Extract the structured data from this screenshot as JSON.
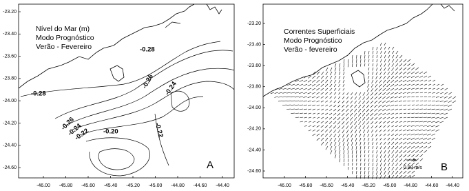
{
  "panels": [
    {
      "title_lines": [
        "Nível do Mar (m)",
        "Modo Prognóstico",
        "Verão - Fevereiro"
      ],
      "letter": "A",
      "xticks": [
        {
          "value": -46.0,
          "label": "-46.00"
        },
        {
          "value": -45.8,
          "label": "-45.80"
        },
        {
          "value": -45.6,
          "label": "-45.60"
        },
        {
          "value": -45.4,
          "label": "-45.40"
        },
        {
          "value": -45.2,
          "label": "-45.20"
        },
        {
          "value": -45.0,
          "label": "-45.00"
        },
        {
          "value": -44.8,
          "label": "-44.80"
        },
        {
          "value": -44.6,
          "label": "-44.60"
        },
        {
          "value": -44.4,
          "label": "-44.40"
        }
      ],
      "yticks": [
        {
          "value": -23.2,
          "label": "-23.20"
        },
        {
          "value": -23.4,
          "label": "-23.40"
        },
        {
          "value": -23.6,
          "label": "-23.60"
        },
        {
          "value": -23.8,
          "label": "-23.80"
        },
        {
          "value": -24.0,
          "label": "-24.00"
        },
        {
          "value": -24.2,
          "label": "-24.20"
        },
        {
          "value": -24.4,
          "label": "-24.40"
        },
        {
          "value": -24.6,
          "label": "-24.60"
        }
      ],
      "contour_labels": [
        "-0.28",
        "-0.28",
        "-0.26",
        "-0.24",
        "-0.26",
        "-0.24",
        "-0.22",
        "-0.20",
        "-0.22"
      ]
    },
    {
      "title_lines": [
        "Correntes Superficiais",
        "Modo Prognóstico",
        "Verão - fevereiro"
      ],
      "letter": "B",
      "scale_label": "0.88 m/s",
      "xticks": [
        {
          "value": -46.0,
          "label": "-46.00"
        },
        {
          "value": -45.8,
          "label": "-45.80"
        },
        {
          "value": -45.6,
          "label": "-45.60"
        },
        {
          "value": -45.4,
          "label": "-45.40"
        },
        {
          "value": -45.2,
          "label": "-45.20"
        },
        {
          "value": -45.0,
          "label": "-45.00"
        },
        {
          "value": -44.8,
          "label": "-44.80"
        },
        {
          "value": -44.6,
          "label": "-44.60"
        },
        {
          "value": -44.4,
          "label": "-44.40"
        }
      ],
      "yticks": [
        {
          "value": -23.2,
          "label": "-23.20"
        },
        {
          "value": -23.4,
          "label": "-23.40"
        },
        {
          "value": -23.6,
          "label": "-23.60"
        },
        {
          "value": -23.8,
          "label": "-23.80"
        },
        {
          "value": -24.0,
          "label": "-24.00"
        },
        {
          "value": -24.2,
          "label": "-24.20"
        },
        {
          "value": -24.4,
          "label": "-24.40"
        },
        {
          "value": -24.6,
          "label": "-24.60"
        }
      ]
    }
  ]
}
